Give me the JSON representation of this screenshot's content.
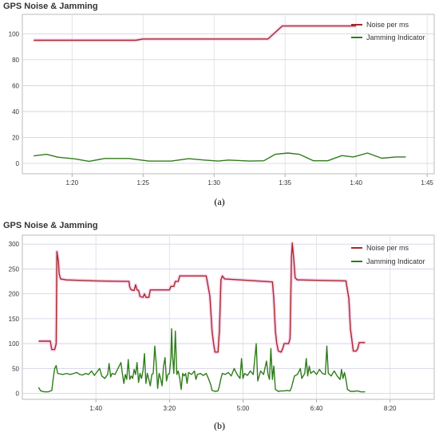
{
  "captions": [
    "(a)",
    "(b)"
  ],
  "chart_data": [
    {
      "type": "line",
      "title": "GPS Noise & Jamming",
      "xlabel": "",
      "ylabel": "",
      "legend_position": "top-right",
      "grid": true,
      "ylim": [
        -8,
        115
      ],
      "yticks": [
        0,
        20,
        40,
        60,
        80,
        100
      ],
      "xlim": [
        76.5,
        105.5
      ],
      "xticks": [
        80,
        85,
        90,
        95,
        100,
        105
      ],
      "xtick_labels": [
        "1:20",
        "1:25",
        "1:30",
        "1:35",
        "1:40",
        "1:45"
      ],
      "series": [
        {
          "name": "Noise per ms",
          "color": "#a52a2a",
          "points": [
            [
              77.3,
              95
            ],
            [
              84.5,
              95
            ],
            [
              85,
              96
            ],
            [
              93.8,
              96
            ],
            [
              94.8,
              106
            ],
            [
              100,
              106
            ]
          ]
        },
        {
          "name": "Jamming Indicator",
          "color": "#2e7d1a",
          "points": [
            [
              77.3,
              5.8
            ],
            [
              78.2,
              7
            ],
            [
              79,
              4.8
            ],
            [
              80.2,
              3.5
            ],
            [
              81.2,
              1.6
            ],
            [
              82.3,
              3.8
            ],
            [
              84,
              3.8
            ],
            [
              85.4,
              1.8
            ],
            [
              87,
              1.8
            ],
            [
              88.2,
              3.6
            ],
            [
              89.3,
              2.6
            ],
            [
              90.3,
              1.8
            ],
            [
              91,
              2.6
            ],
            [
              92.5,
              1.8
            ],
            [
              93.5,
              2
            ],
            [
              94.3,
              7
            ],
            [
              95.2,
              8
            ],
            [
              96,
              7
            ],
            [
              97,
              2
            ],
            [
              98,
              2
            ],
            [
              99,
              6
            ],
            [
              99.8,
              5
            ],
            [
              100.8,
              8
            ],
            [
              101.8,
              4
            ],
            [
              102.8,
              5
            ],
            [
              103.5,
              5
            ]
          ]
        }
      ]
    },
    {
      "type": "line",
      "title": "GPS Noise & Jamming",
      "xlabel": "",
      "ylabel": "",
      "legend_position": "top-right",
      "grid": true,
      "ylim": [
        -12,
        318
      ],
      "yticks": [
        0,
        50,
        100,
        150,
        200,
        250,
        300
      ],
      "xlim": [
        0,
        560
      ],
      "xticks": [
        100,
        200,
        300,
        400,
        500
      ],
      "xtick_labels": [
        "1:40",
        "3:20",
        "5:00",
        "6:40",
        "8:20"
      ],
      "series": [
        {
          "name": "Noise per ms",
          "color": "#a52a2a",
          "points": [
            [
              22,
              105
            ],
            [
              38,
              105
            ],
            [
              40,
              88
            ],
            [
              44,
              88
            ],
            [
              46,
              100
            ],
            [
              47,
              285
            ],
            [
              49,
              265
            ],
            [
              50,
              240
            ],
            [
              52,
              230
            ],
            [
              60,
              228
            ],
            [
              100,
              226
            ],
            [
              145,
              225
            ],
            [
              146,
              214
            ],
            [
              148,
              208
            ],
            [
              152,
              207
            ],
            [
              154,
              218
            ],
            [
              156,
              208
            ],
            [
              158,
              207
            ],
            [
              160,
              195
            ],
            [
              164,
              193
            ],
            [
              166,
              200
            ],
            [
              168,
              193
            ],
            [
              172,
              193
            ],
            [
              174,
              208
            ],
            [
              200,
              208
            ],
            [
              202,
              215
            ],
            [
              206,
              215
            ],
            [
              208,
              225
            ],
            [
              212,
              225
            ],
            [
              214,
              236
            ],
            [
              250,
              236
            ],
            [
              255,
              195
            ],
            [
              258,
              125
            ],
            [
              260,
              100
            ],
            [
              262,
              83
            ],
            [
              266,
              83
            ],
            [
              268,
              125
            ],
            [
              270,
              228
            ],
            [
              272,
              236
            ],
            [
              275,
              230
            ],
            [
              340,
              224
            ],
            [
              342,
              190
            ],
            [
              344,
              125
            ],
            [
              346,
              100
            ],
            [
              348,
              85
            ],
            [
              352,
              83
            ],
            [
              354,
              90
            ],
            [
              356,
              100
            ],
            [
              362,
              100
            ],
            [
              364,
              110
            ],
            [
              366,
              275
            ],
            [
              367,
              302
            ],
            [
              369,
              270
            ],
            [
              371,
              232
            ],
            [
              374,
              228
            ],
            [
              380,
              228
            ],
            [
              440,
              226
            ],
            [
              444,
              190
            ],
            [
              446,
              130
            ],
            [
              448,
              108
            ],
            [
              450,
              85
            ],
            [
              454,
              85
            ],
            [
              456,
              90
            ],
            [
              458,
              102
            ],
            [
              466,
              102
            ]
          ]
        },
        {
          "name": "Jamming Indicator",
          "color": "#2e7d1a",
          "points": [
            [
              22,
              12
            ],
            [
              25,
              5
            ],
            [
              30,
              3
            ],
            [
              35,
              3
            ],
            [
              40,
              6
            ],
            [
              42,
              30
            ],
            [
              44,
              50
            ],
            [
              46,
              56
            ],
            [
              48,
              40
            ],
            [
              55,
              38
            ],
            [
              60,
              40
            ],
            [
              65,
              38
            ],
            [
              70,
              40
            ],
            [
              74,
              42
            ],
            [
              78,
              38
            ],
            [
              82,
              37
            ],
            [
              86,
              40
            ],
            [
              90,
              38
            ],
            [
              94,
              45
            ],
            [
              98,
              36
            ],
            [
              100,
              40
            ],
            [
              105,
              50
            ],
            [
              108,
              35
            ],
            [
              112,
              30
            ],
            [
              116,
              38
            ],
            [
              118,
              60
            ],
            [
              120,
              33
            ],
            [
              122,
              40
            ],
            [
              126,
              38
            ],
            [
              130,
              50
            ],
            [
              134,
              62
            ],
            [
              136,
              40
            ],
            [
              138,
              20
            ],
            [
              140,
              38
            ],
            [
              142,
              28
            ],
            [
              144,
              68
            ],
            [
              146,
              28
            ],
            [
              148,
              35
            ],
            [
              150,
              30
            ],
            [
              152,
              48
            ],
            [
              154,
              38
            ],
            [
              156,
              62
            ],
            [
              158,
              22
            ],
            [
              160,
              40
            ],
            [
              162,
              30
            ],
            [
              164,
              45
            ],
            [
              166,
              80
            ],
            [
              168,
              20
            ],
            [
              170,
              40
            ],
            [
              172,
              28
            ],
            [
              174,
              15
            ],
            [
              176,
              38
            ],
            [
              178,
              40
            ],
            [
              180,
              95
            ],
            [
              182,
              60
            ],
            [
              184,
              10
            ],
            [
              186,
              40
            ],
            [
              188,
              30
            ],
            [
              190,
              15
            ],
            [
              192,
              55
            ],
            [
              194,
              72
            ],
            [
              196,
              25
            ],
            [
              198,
              38
            ],
            [
              200,
              40
            ],
            [
              202,
              70
            ],
            [
              203,
              130
            ],
            [
              204,
              80
            ],
            [
              206,
              40
            ],
            [
              208,
              125
            ],
            [
              210,
              38
            ],
            [
              212,
              45
            ],
            [
              214,
              30
            ],
            [
              216,
              8
            ],
            [
              218,
              40
            ],
            [
              220,
              35
            ],
            [
              222,
              40
            ],
            [
              224,
              20
            ],
            [
              226,
              42
            ],
            [
              230,
              38
            ],
            [
              234,
              45
            ],
            [
              236,
              28
            ],
            [
              238,
              38
            ],
            [
              242,
              40
            ],
            [
              246,
              36
            ],
            [
              250,
              40
            ],
            [
              253,
              30
            ],
            [
              256,
              18
            ],
            [
              258,
              6
            ],
            [
              262,
              4
            ],
            [
              266,
              5
            ],
            [
              268,
              15
            ],
            [
              270,
              30
            ],
            [
              272,
              40
            ],
            [
              276,
              38
            ],
            [
              280,
              42
            ],
            [
              284,
              35
            ],
            [
              288,
              50
            ],
            [
              292,
              38
            ],
            [
              296,
              30
            ],
            [
              298,
              70
            ],
            [
              300,
              30
            ],
            [
              302,
              40
            ],
            [
              306,
              36
            ],
            [
              310,
              45
            ],
            [
              314,
              38
            ],
            [
              318,
              100
            ],
            [
              320,
              25
            ],
            [
              324,
              45
            ],
            [
              328,
              38
            ],
            [
              332,
              65
            ],
            [
              334,
              38
            ],
            [
              336,
              28
            ],
            [
              338,
              90
            ],
            [
              340,
              28
            ],
            [
              342,
              55
            ],
            [
              344,
              8
            ],
            [
              348,
              4
            ],
            [
              352,
              5
            ],
            [
              356,
              5
            ],
            [
              360,
              6
            ],
            [
              364,
              5
            ],
            [
              366,
              12
            ],
            [
              370,
              35
            ],
            [
              374,
              38
            ],
            [
              378,
              50
            ],
            [
              380,
              30
            ],
            [
              384,
              40
            ],
            [
              386,
              70
            ],
            [
              388,
              35
            ],
            [
              390,
              55
            ],
            [
              392,
              40
            ],
            [
              396,
              45
            ],
            [
              400,
              38
            ],
            [
              404,
              48
            ],
            [
              408,
              40
            ],
            [
              412,
              38
            ],
            [
              414,
              95
            ],
            [
              416,
              40
            ],
            [
              420,
              35
            ],
            [
              424,
              45
            ],
            [
              428,
              35
            ],
            [
              432,
              28
            ],
            [
              434,
              48
            ],
            [
              436,
              30
            ],
            [
              438,
              42
            ],
            [
              440,
              28
            ],
            [
              442,
              8
            ],
            [
              446,
              4
            ],
            [
              450,
              4
            ],
            [
              456,
              5
            ],
            [
              460,
              3
            ],
            [
              466,
              3
            ]
          ]
        }
      ]
    }
  ]
}
